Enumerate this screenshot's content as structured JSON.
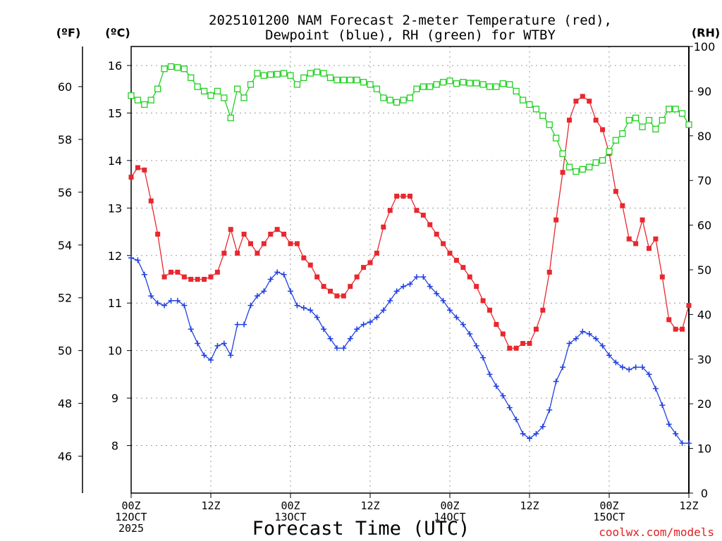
{
  "chart_data": {
    "type": "line",
    "title_line1": "2025101200 NAM Forecast 2-meter Temperature (red),",
    "title_line2": "Dewpoint (blue), RH (green) for WTBY",
    "xlabel": "Forecast Time (UTC)",
    "watermark": "coolwx.com/models",
    "unit_f": "(ºF)",
    "unit_c": "(ºC)",
    "unit_rh": "(RH)",
    "x_range": [
      0,
      84
    ],
    "c_range": [
      7.0,
      16.4
    ],
    "rh_range": [
      0,
      100
    ],
    "f_ticks": [
      46,
      48,
      50,
      52,
      54,
      56,
      58,
      60
    ],
    "c_ticks": [
      8,
      9,
      10,
      11,
      12,
      13,
      14,
      15,
      16
    ],
    "rh_ticks": [
      0,
      10,
      20,
      30,
      40,
      50,
      60,
      70,
      80,
      90,
      100
    ],
    "x_ticks": [
      {
        "h": 0,
        "lines": [
          "00Z",
          "12OCT",
          "2025"
        ]
      },
      {
        "h": 12,
        "lines": [
          "12Z"
        ]
      },
      {
        "h": 24,
        "lines": [
          "00Z",
          "13OCT"
        ]
      },
      {
        "h": 36,
        "lines": [
          "12Z"
        ]
      },
      {
        "h": 48,
        "lines": [
          "00Z",
          "14OCT"
        ]
      },
      {
        "h": 60,
        "lines": [
          "12Z"
        ]
      },
      {
        "h": 72,
        "lines": [
          "00Z",
          "15OCT"
        ]
      },
      {
        "h": 84,
        "lines": [
          "12Z"
        ]
      }
    ],
    "colors": {
      "temperature": "#e8282e",
      "dewpoint": "#2040e0",
      "rh": "#20d020"
    },
    "series": [
      {
        "name": "Temperature",
        "unit": "C",
        "marker": "filled-square",
        "points": [
          [
            0,
            13.65
          ],
          [
            1,
            13.85
          ],
          [
            2,
            13.8
          ],
          [
            3,
            13.15
          ],
          [
            4,
            12.45
          ],
          [
            5,
            11.55
          ],
          [
            6,
            11.65
          ],
          [
            7,
            11.65
          ],
          [
            8,
            11.55
          ],
          [
            9,
            11.5
          ],
          [
            10,
            11.5
          ],
          [
            11,
            11.5
          ],
          [
            12,
            11.55
          ],
          [
            13,
            11.65
          ],
          [
            14,
            12.05
          ],
          [
            15,
            12.55
          ],
          [
            16,
            12.05
          ],
          [
            17,
            12.45
          ],
          [
            18,
            12.25
          ],
          [
            19,
            12.05
          ],
          [
            20,
            12.25
          ],
          [
            21,
            12.45
          ],
          [
            22,
            12.55
          ],
          [
            23,
            12.45
          ],
          [
            24,
            12.25
          ],
          [
            25,
            12.25
          ],
          [
            26,
            11.95
          ],
          [
            27,
            11.8
          ],
          [
            28,
            11.55
          ],
          [
            29,
            11.35
          ],
          [
            30,
            11.25
          ],
          [
            31,
            11.15
          ],
          [
            32,
            11.15
          ],
          [
            33,
            11.35
          ],
          [
            34,
            11.55
          ],
          [
            35,
            11.75
          ],
          [
            36,
            11.85
          ],
          [
            37,
            12.05
          ],
          [
            38,
            12.6
          ],
          [
            39,
            12.95
          ],
          [
            40,
            13.25
          ],
          [
            41,
            13.25
          ],
          [
            42,
            13.25
          ],
          [
            43,
            12.95
          ],
          [
            44,
            12.85
          ],
          [
            45,
            12.65
          ],
          [
            46,
            12.45
          ],
          [
            47,
            12.25
          ],
          [
            48,
            12.05
          ],
          [
            49,
            11.9
          ],
          [
            50,
            11.75
          ],
          [
            51,
            11.55
          ],
          [
            52,
            11.35
          ],
          [
            53,
            11.05
          ],
          [
            54,
            10.85
          ],
          [
            55,
            10.55
          ],
          [
            56,
            10.35
          ],
          [
            57,
            10.05
          ],
          [
            58,
            10.05
          ],
          [
            59,
            10.15
          ],
          [
            60,
            10.15
          ],
          [
            61,
            10.45
          ],
          [
            62,
            10.85
          ],
          [
            63,
            11.65
          ],
          [
            64,
            12.75
          ],
          [
            65,
            13.75
          ],
          [
            66,
            14.85
          ],
          [
            67,
            15.25
          ],
          [
            68,
            15.35
          ],
          [
            69,
            15.25
          ],
          [
            70,
            14.85
          ],
          [
            71,
            14.65
          ],
          [
            72,
            14.15
          ],
          [
            73,
            13.35
          ],
          [
            74,
            13.05
          ],
          [
            75,
            12.35
          ],
          [
            76,
            12.25
          ],
          [
            77,
            12.75
          ],
          [
            78,
            12.15
          ],
          [
            79,
            12.35
          ],
          [
            80,
            11.55
          ],
          [
            81,
            10.65
          ],
          [
            82,
            10.45
          ],
          [
            83,
            10.45
          ],
          [
            84,
            10.95
          ]
        ]
      },
      {
        "name": "Dewpoint",
        "unit": "C",
        "marker": "plus",
        "points": [
          [
            0,
            11.95
          ],
          [
            1,
            11.9
          ],
          [
            2,
            11.6
          ],
          [
            3,
            11.15
          ],
          [
            4,
            11.0
          ],
          [
            5,
            10.95
          ],
          [
            6,
            11.05
          ],
          [
            7,
            11.05
          ],
          [
            8,
            10.95
          ],
          [
            9,
            10.45
          ],
          [
            10,
            10.15
          ],
          [
            11,
            9.9
          ],
          [
            12,
            9.8
          ],
          [
            13,
            10.1
          ],
          [
            14,
            10.15
          ],
          [
            15,
            9.9
          ],
          [
            16,
            10.55
          ],
          [
            17,
            10.55
          ],
          [
            18,
            10.95
          ],
          [
            19,
            11.15
          ],
          [
            20,
            11.25
          ],
          [
            21,
            11.5
          ],
          [
            22,
            11.65
          ],
          [
            23,
            11.6
          ],
          [
            24,
            11.25
          ],
          [
            25,
            10.95
          ],
          [
            26,
            10.9
          ],
          [
            27,
            10.85
          ],
          [
            28,
            10.7
          ],
          [
            29,
            10.45
          ],
          [
            30,
            10.25
          ],
          [
            31,
            10.05
          ],
          [
            32,
            10.05
          ],
          [
            33,
            10.25
          ],
          [
            34,
            10.45
          ],
          [
            35,
            10.55
          ],
          [
            36,
            10.6
          ],
          [
            37,
            10.7
          ],
          [
            38,
            10.85
          ],
          [
            39,
            11.05
          ],
          [
            40,
            11.25
          ],
          [
            41,
            11.35
          ],
          [
            42,
            11.4
          ],
          [
            43,
            11.55
          ],
          [
            44,
            11.55
          ],
          [
            45,
            11.35
          ],
          [
            46,
            11.2
          ],
          [
            47,
            11.05
          ],
          [
            48,
            10.85
          ],
          [
            49,
            10.7
          ],
          [
            50,
            10.55
          ],
          [
            51,
            10.35
          ],
          [
            52,
            10.1
          ],
          [
            53,
            9.85
          ],
          [
            54,
            9.5
          ],
          [
            55,
            9.25
          ],
          [
            56,
            9.05
          ],
          [
            57,
            8.8
          ],
          [
            58,
            8.55
          ],
          [
            59,
            8.25
          ],
          [
            60,
            8.15
          ],
          [
            61,
            8.25
          ],
          [
            62,
            8.4
          ],
          [
            63,
            8.75
          ],
          [
            64,
            9.35
          ],
          [
            65,
            9.65
          ],
          [
            66,
            10.15
          ],
          [
            67,
            10.25
          ],
          [
            68,
            10.4
          ],
          [
            69,
            10.35
          ],
          [
            70,
            10.25
          ],
          [
            71,
            10.1
          ],
          [
            72,
            9.9
          ],
          [
            73,
            9.75
          ],
          [
            74,
            9.65
          ],
          [
            75,
            9.6
          ],
          [
            76,
            9.65
          ],
          [
            77,
            9.65
          ],
          [
            78,
            9.5
          ],
          [
            79,
            9.2
          ],
          [
            80,
            8.85
          ],
          [
            81,
            8.45
          ],
          [
            82,
            8.25
          ],
          [
            83,
            8.05
          ],
          [
            84,
            8.05
          ]
        ]
      },
      {
        "name": "RH",
        "unit": "%",
        "marker": "open-square",
        "points": [
          [
            0,
            89
          ],
          [
            1,
            88
          ],
          [
            2,
            87
          ],
          [
            3,
            88
          ],
          [
            4,
            90.5
          ],
          [
            5,
            95
          ],
          [
            6,
            95.5
          ],
          [
            7,
            95.3
          ],
          [
            8,
            95
          ],
          [
            9,
            93
          ],
          [
            10,
            91
          ],
          [
            11,
            90
          ],
          [
            12,
            89
          ],
          [
            13,
            90
          ],
          [
            14,
            88.5
          ],
          [
            15,
            84
          ],
          [
            16,
            90.5
          ],
          [
            17,
            88.5
          ],
          [
            18,
            91.5
          ],
          [
            19,
            94
          ],
          [
            20,
            93.5
          ],
          [
            21,
            93.7
          ],
          [
            22,
            93.8
          ],
          [
            23,
            94
          ],
          [
            24,
            93.5
          ],
          [
            25,
            91.5
          ],
          [
            26,
            93
          ],
          [
            27,
            94
          ],
          [
            28,
            94.3
          ],
          [
            29,
            94
          ],
          [
            30,
            93
          ],
          [
            31,
            92.5
          ],
          [
            32,
            92.5
          ],
          [
            33,
            92.5
          ],
          [
            34,
            92.5
          ],
          [
            35,
            92
          ],
          [
            36,
            91.5
          ],
          [
            37,
            90.5
          ],
          [
            38,
            88.5
          ],
          [
            39,
            88
          ],
          [
            40,
            87.5
          ],
          [
            41,
            88
          ],
          [
            42,
            88.5
          ],
          [
            43,
            90.5
          ],
          [
            44,
            91
          ],
          [
            45,
            91
          ],
          [
            46,
            91.5
          ],
          [
            47,
            92
          ],
          [
            48,
            92.3
          ],
          [
            49,
            91.7
          ],
          [
            50,
            92
          ],
          [
            51,
            91.8
          ],
          [
            52,
            91.8
          ],
          [
            53,
            91.5
          ],
          [
            54,
            91
          ],
          [
            55,
            91
          ],
          [
            56,
            91.7
          ],
          [
            57,
            91.5
          ],
          [
            58,
            90
          ],
          [
            59,
            88
          ],
          [
            60,
            87
          ],
          [
            61,
            86
          ],
          [
            62,
            84.5
          ],
          [
            63,
            82.5
          ],
          [
            64,
            79.5
          ],
          [
            65,
            76
          ],
          [
            66,
            73
          ],
          [
            67,
            72
          ],
          [
            68,
            72.5
          ],
          [
            69,
            73
          ],
          [
            70,
            74
          ],
          [
            71,
            74.5
          ],
          [
            72,
            76.5
          ],
          [
            73,
            79
          ],
          [
            74,
            80.5
          ],
          [
            75,
            83.5
          ],
          [
            76,
            84
          ],
          [
            77,
            82
          ],
          [
            78,
            83.5
          ],
          [
            79,
            81.5
          ],
          [
            80,
            83.5
          ],
          [
            81,
            86
          ],
          [
            82,
            86
          ],
          [
            83,
            85
          ],
          [
            84,
            82.5
          ]
        ]
      }
    ]
  }
}
